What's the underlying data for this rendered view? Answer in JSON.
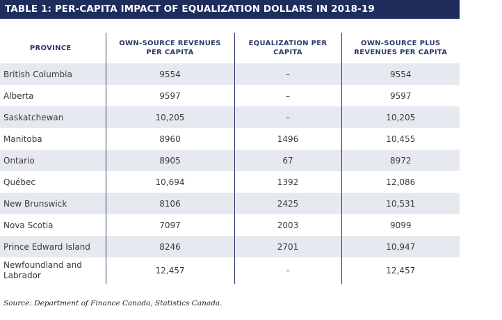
{
  "title": "TABLE 1: PER-CAPITA IMPACT OF EQUALIZATION DOLLARS IN 2018-19",
  "columns": [
    "PROVINCE",
    "OWN-SOURCE REVENUES PER CAPITA",
    "EQUALIZATION PER CAPITA",
    "OWN-SOURCE PLUS REVENUES PER CAPITA"
  ],
  "rows": [
    {
      "province": "British Columbia",
      "own_source": "9554",
      "equalization": "–",
      "total": "9554"
    },
    {
      "province": "Alberta",
      "own_source": "9597",
      "equalization": "–",
      "total": "9597"
    },
    {
      "province": "Saskatchewan",
      "own_source": "10,205",
      "equalization": "–",
      "total": "10,205"
    },
    {
      "province": "Manitoba",
      "own_source": "8960",
      "equalization": "1496",
      "total": "10,455"
    },
    {
      "province": "Ontario",
      "own_source": "8905",
      "equalization": "67",
      "total": "8972"
    },
    {
      "province": "Québec",
      "own_source": "10,694",
      "equalization": "1392",
      "total": "12,086"
    },
    {
      "province": "New Brunswick",
      "own_source": "8106",
      "equalization": "2425",
      "total": "10,531"
    },
    {
      "province": "Nova Scotia",
      "own_source": "7097",
      "equalization": "2003",
      "total": "9099"
    },
    {
      "province": "Prince Edward Island",
      "own_source": "8246",
      "equalization": "2701",
      "total": "10,947"
    },
    {
      "province": "Newfoundland and Labrador",
      "own_source": "12,457",
      "equalization": "–",
      "total": "12,457"
    }
  ],
  "source": "Source: Department of Finance Canada, Statistics Canada.",
  "colors": {
    "header_bar": "#1f2d5c",
    "header_text": "#2a3a6a",
    "stripe": "#e7e9f0"
  }
}
